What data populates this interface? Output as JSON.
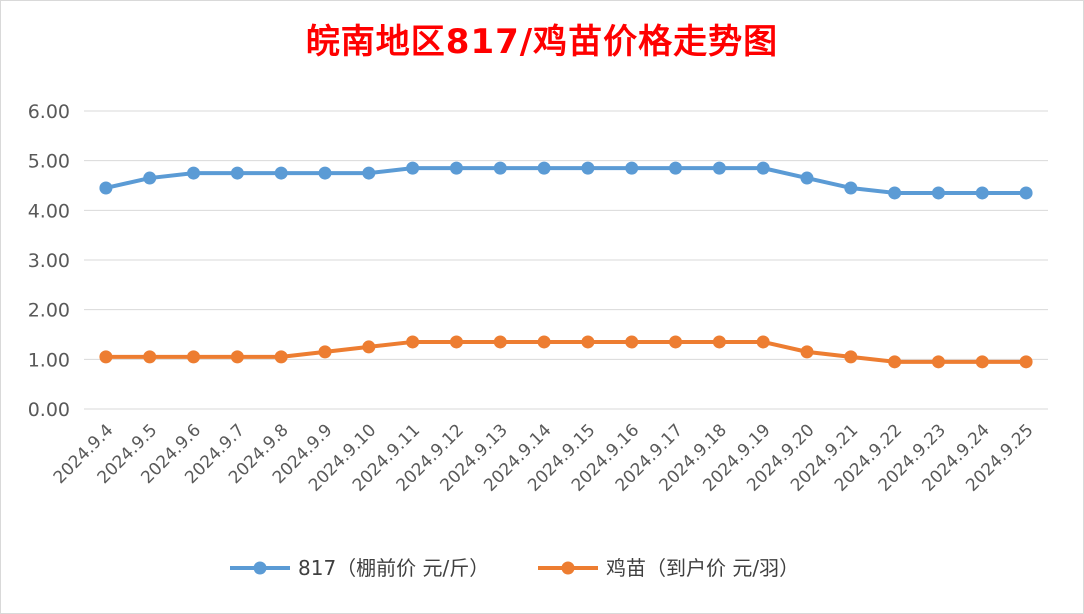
{
  "chart_data": {
    "type": "line",
    "title": "皖南地区817/鸡苗价格走势图",
    "categories": [
      "2024.9.4",
      "2024.9.5",
      "2024.9.6",
      "2024.9.7",
      "2024.9.8",
      "2024.9.9",
      "2024.9.10",
      "2024.9.11",
      "2024.9.12",
      "2024.9.13",
      "2024.9.14",
      "2024.9.15",
      "2024.9.16",
      "2024.9.17",
      "2024.9.18",
      "2024.9.19",
      "2024.9.20",
      "2024.9.21",
      "2024.9.22",
      "2024.9.23",
      "2024.9.24",
      "2024.9.25"
    ],
    "ylim": [
      0,
      6
    ],
    "yticks": [
      "0.00",
      "1.00",
      "2.00",
      "3.00",
      "4.00",
      "5.00",
      "6.00"
    ],
    "grid": true,
    "legend_position": "bottom",
    "series": [
      {
        "name": "817（棚前价 元/斤）",
        "color": "#5b9bd5",
        "values": [
          4.45,
          4.65,
          4.75,
          4.75,
          4.75,
          4.75,
          4.75,
          4.85,
          4.85,
          4.85,
          4.85,
          4.85,
          4.85,
          4.85,
          4.85,
          4.85,
          4.65,
          4.45,
          4.35,
          4.35,
          4.35,
          4.35
        ]
      },
      {
        "name": "鸡苗（到户价 元/羽）",
        "color": "#ed7d31",
        "values": [
          1.05,
          1.05,
          1.05,
          1.05,
          1.05,
          1.15,
          1.25,
          1.35,
          1.35,
          1.35,
          1.35,
          1.35,
          1.35,
          1.35,
          1.35,
          1.35,
          1.15,
          1.05,
          0.95,
          0.95,
          0.95,
          0.95
        ]
      }
    ]
  }
}
